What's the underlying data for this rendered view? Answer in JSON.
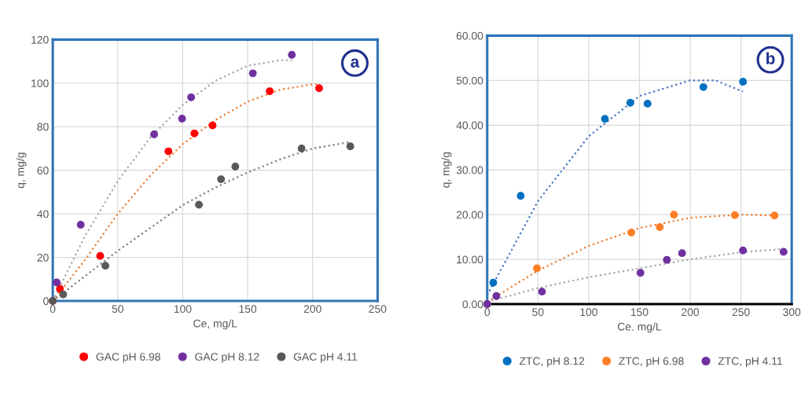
{
  "chart_data": [
    {
      "type": "scatter",
      "xlabel": "Ce, mg/L",
      "ylabel": "q, mg/g",
      "xlim": [
        0,
        250
      ],
      "xticks": [
        0,
        50,
        100,
        150,
        200,
        250
      ],
      "ylim": [
        0,
        120
      ],
      "yticks": [
        0,
        20,
        40,
        60,
        80,
        100,
        120
      ],
      "grid": true,
      "legend": "bottom",
      "annotations": [
        "a"
      ],
      "series": [
        {
          "name": "GAC pH 6.98",
          "marker": "circle",
          "color": "#ff0000",
          "x": [
            0,
            5.5,
            36.5,
            89,
            109,
            123,
            167,
            205
          ],
          "values": [
            0,
            5.6,
            20.7,
            68.7,
            76.9,
            80.6,
            96.3,
            97.7
          ]
        },
        {
          "name": "GAC pH 8.12",
          "marker": "circle",
          "color": "#7030a0",
          "x": [
            3,
            21.5,
            78,
            99.5,
            106.5,
            154,
            184
          ],
          "values": [
            8.5,
            35,
            76.5,
            83.7,
            93.5,
            104.5,
            113
          ]
        },
        {
          "name": "GAC pH 4.11",
          "marker": "circle",
          "color": "#595959",
          "x": [
            0,
            8,
            40.5,
            112.5,
            129.5,
            140.5,
            191.5,
            229
          ],
          "values": [
            0,
            3,
            16.2,
            44.2,
            55.9,
            61.7,
            70,
            71
          ]
        },
        {
          "type": "line",
          "line_style": "dotted",
          "marker": "none",
          "color": "#ed7d31",
          "x": [
            0,
            25,
            50,
            75,
            100,
            125,
            150,
            175,
            200,
            205
          ],
          "values": [
            0,
            19,
            40,
            57.5,
            72,
            83,
            91.5,
            97,
            99.5,
            99.5
          ]
        },
        {
          "type": "line",
          "line_style": "dotted",
          "marker": "none",
          "color": "#a6a6a6",
          "x": [
            0,
            25,
            50,
            75,
            100,
            125,
            150,
            175,
            184
          ],
          "values": [
            0,
            30,
            55,
            75,
            90,
            101,
            108,
            110.5,
            110.5
          ]
        },
        {
          "type": "line",
          "line_style": "dotted",
          "marker": "none",
          "color": "#7f7f7f",
          "x": [
            0,
            50,
            100,
            125,
            150,
            175,
            200,
            229
          ],
          "values": [
            0,
            23,
            44,
            52,
            59,
            65,
            70,
            73
          ]
        }
      ]
    },
    {
      "type": "scatter",
      "xlabel": "Ce. mg/L",
      "ylabel": "q, mg/g",
      "xlim": [
        0,
        300
      ],
      "xticks": [
        0,
        50,
        100,
        150,
        200,
        250,
        300
      ],
      "ylim": [
        0,
        60
      ],
      "yticks": [
        {
          "value": 0,
          "label": "0.00"
        },
        {
          "value": 10,
          "label": "10.00"
        },
        {
          "value": 20,
          "label": "20.00"
        },
        {
          "value": 30,
          "label": "30.00"
        },
        {
          "value": 40,
          "label": "40.00"
        },
        {
          "value": 50,
          "label": "50.00"
        },
        {
          "value": 60,
          "label": "60.00"
        }
      ],
      "grid": true,
      "legend": "bottom",
      "annotations": [
        "b"
      ],
      "series": [
        {
          "name": "ZTC, pH 8.12",
          "marker": "circle",
          "color": "#0070c0",
          "x": [
            0,
            6,
            33,
            116,
            141,
            158,
            213,
            252
          ],
          "values": [
            0,
            4.8,
            24.2,
            41.4,
            45,
            44.8,
            48.5,
            49.7
          ]
        },
        {
          "name": "ZTC, pH 6.98",
          "marker": "circle",
          "color": "#ff7f27",
          "x": [
            0,
            49,
            142,
            170,
            184,
            244,
            283
          ],
          "values": [
            0,
            8,
            16,
            17.2,
            20,
            19.9,
            19.8
          ]
        },
        {
          "name": "ZTC, pH 4.11",
          "marker": "circle",
          "color": "#7030a0",
          "x": [
            0,
            9,
            54,
            151,
            177,
            192,
            252,
            292
          ],
          "values": [
            0,
            1.8,
            2.8,
            7,
            9.9,
            11.4,
            12,
            11.7
          ]
        },
        {
          "type": "line",
          "line_style": "dotted",
          "marker": "none",
          "color": "#4472c4",
          "x": [
            0,
            50,
            100,
            150,
            200,
            225,
            252
          ],
          "values": [
            2,
            23,
            37.5,
            46.5,
            50,
            50,
            47.5
          ]
        },
        {
          "type": "line",
          "line_style": "dotted",
          "marker": "none",
          "color": "#ed7d31",
          "x": [
            0,
            50,
            100,
            150,
            200,
            250,
            283
          ],
          "values": [
            0.5,
            7.5,
            13,
            17,
            19.3,
            20,
            19.8
          ]
        },
        {
          "type": "line",
          "line_style": "dotted",
          "marker": "none",
          "color": "#a6a6a6",
          "x": [
            0,
            50,
            100,
            150,
            200,
            250,
            290
          ],
          "values": [
            0.5,
            3.6,
            6,
            8,
            10,
            11.6,
            12.3
          ]
        }
      ]
    }
  ]
}
